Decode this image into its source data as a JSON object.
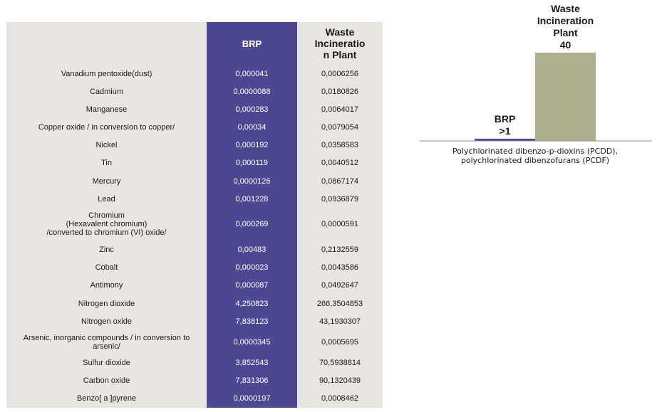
{
  "table": {
    "headers": {
      "substance": "",
      "brp": "BRP",
      "wip_lines": [
        "Waste",
        "Incineratio",
        "n  Plant"
      ]
    },
    "rows": [
      {
        "lines": [
          "Vanadium pentoxide(dust)"
        ],
        "brp": "0,000041",
        "wip": "0,0006256"
      },
      {
        "lines": [
          "Cadmium"
        ],
        "brp": "0,0000088",
        "wip": "0,0180826"
      },
      {
        "lines": [
          "Manganese"
        ],
        "brp": "0,000283",
        "wip": "0,0064017"
      },
      {
        "lines": [
          "Copper oxide / in conversion to copper/"
        ],
        "brp": "0,00034",
        "wip": "0,0079054"
      },
      {
        "lines": [
          "Nickel"
        ],
        "brp": "0,000192",
        "wip": "0,0358583"
      },
      {
        "lines": [
          "Tin"
        ],
        "brp": "0,000119",
        "wip": "0,0040512"
      },
      {
        "lines": [
          "Mercury"
        ],
        "brp": "0,0000126",
        "wip": "0,0867174"
      },
      {
        "lines": [
          "Lead"
        ],
        "brp": "0,001228",
        "wip": "0,0936879"
      },
      {
        "lines": [
          "Chromium",
          "(Hexavalent chromium)",
          "/converted to chromium (VI) oxide/"
        ],
        "brp": "0,000269",
        "wip": "0,0000591"
      },
      {
        "lines": [
          "Zinc"
        ],
        "brp": "0,00483",
        "wip": "0,2132559"
      },
      {
        "lines": [
          "Cobalt"
        ],
        "brp": "0,000023",
        "wip": "0,0043586"
      },
      {
        "lines": [
          "Antimony"
        ],
        "brp": "0,000087",
        "wip": "0,0492647"
      },
      {
        "lines": [
          "Nitrogen dioxide"
        ],
        "brp": "4,250823",
        "wip": "266,3504853"
      },
      {
        "lines": [
          "Nitrogen oxide"
        ],
        "brp": "7,838123",
        "wip": "43,1930307"
      },
      {
        "lines": [
          "Arsenic, inorganic compounds / in conversion to",
          "arsenic/"
        ],
        "brp": "0,0000345",
        "wip": "0,0005695"
      },
      {
        "lines": [
          "Sulfur dioxide"
        ],
        "brp": "3,852543",
        "wip": "70,5938814"
      },
      {
        "lines": [
          "Carbon oxide"
        ],
        "brp": "7,831306",
        "wip": "90,1320439"
      },
      {
        "lines": [
          "Benzo[ a ]pyrene"
        ],
        "brp": "0,0000197",
        "wip": "0,0008462"
      }
    ]
  },
  "chart_data": {
    "type": "bar",
    "categories": [
      "Polychlorinated dibenzo-p-dioxins (PCDD), polychlorinated dibenzofurans (PCDF)"
    ],
    "category_lines": [
      "Polychlorinated dibenzo-p-dioxins (PCDD),",
      "polychlorinated dibenzofurans (PCDF)"
    ],
    "series": [
      {
        "name": "BRP",
        "values": [
          1
        ],
        "label_lines": [
          "BRP",
          ">1"
        ]
      },
      {
        "name": "Waste Incineration Plant",
        "values": [
          40
        ],
        "label_lines": [
          "Waste",
          "Incineration",
          "Plant",
          "40"
        ]
      }
    ],
    "ylim": [
      0,
      40
    ],
    "grid": false,
    "legend": "none",
    "colors": [
      "#4e4893",
      "#adb08f"
    ]
  }
}
